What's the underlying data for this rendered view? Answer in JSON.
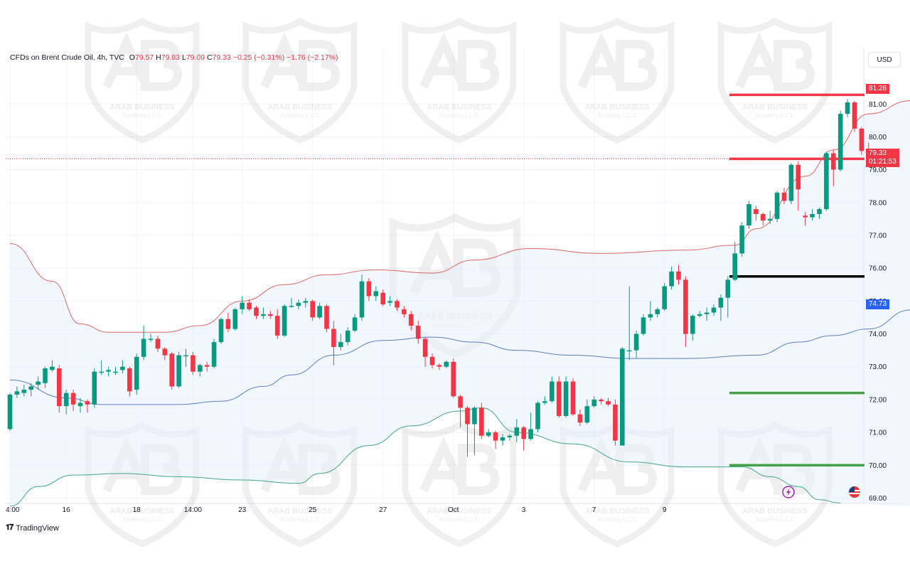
{
  "header": {
    "symbol": "CFDs on Brent Crude Oil, 4h, TVC",
    "o_label": "O",
    "o": "79.57",
    "h_label": "H",
    "h": "79.83",
    "l_label": "L",
    "l": "79.09",
    "c_label": "C",
    "c": "79.33",
    "change": "−0.25 (−0.31%)",
    "change2": "−1.76 (−2.17%)"
  },
  "currency": "USD",
  "brand": "TradingView",
  "watermark": {
    "main": "ARAB BUSINESS",
    "sub": "Academy L.L.C"
  },
  "colors": {
    "up": "#089981",
    "down": "#f23645",
    "upper_band": "#e06666",
    "middle_band": "#5b7fbf",
    "lower_band": "#3fa88a",
    "band_fill": "#e8f1fb"
  },
  "price_tags": {
    "top_line": "81.28",
    "last": "79.33",
    "countdown": "01:21:53",
    "middle": "74.73"
  },
  "chart_data": {
    "type": "candlestick",
    "y_axis": {
      "ticks": [
        "81.00",
        "80.00",
        "79.00",
        "78.00",
        "77.00",
        "76.00",
        "75.00",
        "74.00",
        "73.00",
        "72.00",
        "71.00",
        "70.00",
        "69.00"
      ],
      "ylim": [
        68.75,
        81.85
      ]
    },
    "x_axis": {
      "labels": [
        "4:00",
        "16",
        "18",
        "14:00",
        "23",
        "25",
        "27",
        "Oct",
        "3",
        "7",
        "9"
      ],
      "label_index": [
        0,
        8,
        18,
        26,
        33,
        43,
        53,
        63,
        73,
        83,
        93
      ]
    },
    "candles": [
      [
        71.1,
        72.15,
        71.05,
        72.2
      ],
      [
        72.15,
        72.25,
        72.05,
        72.4
      ],
      [
        72.2,
        72.3,
        72.1,
        72.45
      ],
      [
        72.3,
        72.4,
        72.1,
        72.5
      ],
      [
        72.45,
        72.55,
        72.3,
        72.7
      ],
      [
        72.5,
        72.95,
        72.35,
        73.0
      ],
      [
        72.9,
        73.0,
        72.85,
        73.2
      ],
      [
        72.95,
        71.8,
        71.6,
        73.05
      ],
      [
        71.8,
        72.2,
        71.55,
        72.3
      ],
      [
        72.2,
        71.85,
        71.65,
        72.3
      ],
      [
        71.8,
        71.9,
        71.6,
        72.05
      ],
      [
        71.95,
        71.85,
        71.6,
        72.0
      ],
      [
        71.85,
        72.85,
        71.75,
        72.95
      ],
      [
        72.85,
        72.85,
        72.75,
        73.2
      ],
      [
        72.85,
        72.9,
        72.7,
        73.0
      ],
      [
        72.85,
        72.85,
        72.75,
        73.0
      ],
      [
        72.9,
        73.0,
        72.8,
        73.2
      ],
      [
        72.95,
        72.25,
        72.1,
        73.0
      ],
      [
        72.3,
        73.3,
        72.15,
        73.4
      ],
      [
        73.3,
        73.85,
        73.2,
        74.25
      ],
      [
        73.85,
        73.85,
        73.75,
        74.0
      ],
      [
        73.85,
        73.55,
        73.45,
        73.95
      ],
      [
        73.55,
        73.35,
        73.2,
        73.6
      ],
      [
        73.4,
        72.4,
        72.3,
        73.45
      ],
      [
        72.4,
        73.35,
        72.35,
        73.45
      ],
      [
        73.35,
        73.35,
        73.0,
        73.55
      ],
      [
        73.35,
        72.85,
        72.75,
        73.45
      ],
      [
        72.85,
        73.05,
        72.7,
        73.1
      ],
      [
        73.05,
        73.0,
        72.85,
        73.15
      ],
      [
        73.0,
        73.75,
        72.95,
        73.85
      ],
      [
        73.75,
        74.45,
        73.7,
        74.5
      ],
      [
        74.45,
        74.15,
        74.05,
        74.65
      ],
      [
        74.15,
        74.75,
        74.1,
        74.8
      ],
      [
        74.75,
        74.95,
        74.6,
        75.15
      ],
      [
        74.95,
        74.75,
        74.7,
        75.05
      ],
      [
        74.8,
        74.55,
        74.45,
        74.85
      ],
      [
        74.55,
        74.6,
        74.45,
        74.8
      ],
      [
        74.6,
        74.55,
        74.45,
        74.7
      ],
      [
        74.55,
        73.95,
        73.85,
        74.75
      ],
      [
        73.95,
        74.85,
        73.9,
        74.9
      ],
      [
        74.85,
        74.85,
        74.8,
        75.1
      ],
      [
        74.85,
        74.95,
        74.75,
        75.05
      ],
      [
        74.95,
        75.0,
        74.8,
        75.1
      ],
      [
        75.0,
        74.5,
        74.4,
        75.05
      ],
      [
        74.5,
        74.85,
        74.45,
        74.95
      ],
      [
        74.85,
        74.15,
        74.05,
        74.9
      ],
      [
        74.15,
        73.6,
        73.05,
        74.4
      ],
      [
        73.6,
        73.75,
        73.5,
        74.0
      ],
      [
        73.75,
        74.1,
        73.65,
        74.2
      ],
      [
        74.1,
        74.5,
        74.05,
        74.6
      ],
      [
        74.5,
        75.6,
        74.4,
        75.8
      ],
      [
        75.6,
        75.15,
        75.0,
        75.7
      ],
      [
        75.15,
        75.3,
        75.0,
        75.45
      ],
      [
        75.25,
        74.9,
        74.85,
        75.35
      ],
      [
        74.95,
        75.0,
        74.85,
        75.15
      ],
      [
        75.0,
        74.8,
        74.7,
        75.05
      ],
      [
        74.75,
        74.6,
        74.5,
        74.85
      ],
      [
        74.6,
        74.25,
        74.1,
        74.7
      ],
      [
        74.25,
        73.85,
        73.7,
        74.4
      ],
      [
        73.85,
        73.3,
        73.0,
        73.9
      ],
      [
        73.3,
        73.05,
        72.95,
        73.4
      ],
      [
        73.05,
        73.0,
        72.9,
        73.1
      ],
      [
        73.0,
        73.15,
        72.95,
        73.2
      ],
      [
        73.15,
        72.1,
        72.05,
        73.25
      ],
      [
        72.1,
        71.75,
        71.15,
        72.15
      ],
      [
        71.75,
        71.25,
        70.25,
        71.8
      ],
      [
        71.25,
        71.75,
        70.3,
        71.8
      ],
      [
        71.75,
        70.9,
        70.8,
        71.9
      ],
      [
        70.9,
        71.0,
        70.85,
        71.1
      ],
      [
        71.0,
        70.75,
        70.5,
        71.05
      ],
      [
        70.75,
        70.85,
        70.6,
        70.95
      ],
      [
        70.85,
        70.9,
        70.75,
        70.95
      ],
      [
        70.9,
        71.15,
        70.7,
        71.4
      ],
      [
        71.15,
        70.8,
        70.45,
        71.2
      ],
      [
        70.8,
        71.1,
        70.75,
        71.6
      ],
      [
        71.1,
        71.9,
        71.0,
        71.95
      ],
      [
        71.9,
        71.95,
        71.85,
        72.1
      ],
      [
        71.95,
        72.55,
        71.9,
        72.7
      ],
      [
        72.55,
        71.5,
        71.45,
        72.7
      ],
      [
        71.5,
        72.55,
        71.45,
        72.7
      ],
      [
        72.55,
        71.55,
        71.5,
        72.65
      ],
      [
        71.55,
        71.3,
        71.2,
        71.7
      ],
      [
        71.3,
        71.8,
        71.25,
        72.0
      ],
      [
        71.8,
        72.0,
        71.75,
        72.1
      ],
      [
        72.0,
        71.95,
        71.85,
        72.05
      ],
      [
        71.95,
        71.85,
        71.8,
        72.05
      ],
      [
        71.85,
        70.75,
        70.6,
        72.0
      ],
      [
        70.6,
        73.55,
        70.6,
        73.6
      ],
      [
        73.5,
        73.5,
        73.2,
        75.45
      ],
      [
        73.5,
        74.0,
        73.25,
        74.1
      ],
      [
        74.0,
        74.5,
        73.95,
        74.6
      ],
      [
        74.5,
        74.6,
        74.4,
        75.0
      ],
      [
        74.6,
        74.75,
        74.5,
        74.8
      ],
      [
        74.75,
        75.45,
        74.7,
        75.55
      ],
      [
        75.45,
        75.9,
        75.35,
        76.05
      ],
      [
        75.9,
        75.65,
        75.5,
        76.1
      ],
      [
        75.65,
        74.0,
        73.6,
        75.75
      ],
      [
        74.0,
        74.55,
        73.8,
        74.6
      ],
      [
        74.55,
        74.6,
        74.5,
        74.7
      ],
      [
        74.6,
        74.65,
        74.4,
        74.8
      ],
      [
        74.65,
        74.8,
        74.55,
        74.9
      ],
      [
        74.8,
        75.1,
        74.4,
        75.2
      ],
      [
        75.1,
        75.65,
        74.5,
        75.75
      ],
      [
        75.65,
        76.45,
        75.6,
        76.8
      ],
      [
        76.45,
        77.3,
        76.35,
        77.4
      ],
      [
        77.3,
        77.95,
        77.2,
        78.05
      ],
      [
        77.8,
        77.65,
        77.45,
        77.9
      ],
      [
        77.65,
        77.45,
        77.3,
        77.7
      ],
      [
        77.45,
        77.5,
        77.35,
        77.75
      ],
      [
        77.5,
        78.3,
        77.4,
        78.35
      ],
      [
        78.3,
        78.05,
        77.95,
        78.45
      ],
      [
        78.05,
        79.15,
        77.95,
        79.2
      ],
      [
        79.15,
        78.4,
        77.75,
        79.25
      ],
      [
        77.6,
        77.55,
        77.3,
        77.7
      ],
      [
        77.55,
        77.65,
        77.45,
        77.8
      ],
      [
        77.65,
        77.8,
        77.5,
        77.85
      ],
      [
        77.8,
        79.5,
        77.75,
        79.55
      ],
      [
        79.5,
        79.0,
        78.5,
        79.6
      ],
      [
        79.0,
        80.7,
        78.95,
        80.8
      ],
      [
        80.7,
        81.05,
        80.6,
        81.15
      ],
      [
        81.05,
        80.25,
        80.15,
        81.1
      ],
      [
        80.25,
        79.57,
        79.45,
        80.3
      ],
      [
        79.57,
        79.33,
        79.09,
        79.83
      ]
    ],
    "upper_band_points": [
      [
        0,
        76.75
      ],
      [
        6,
        75.6
      ],
      [
        10,
        74.3
      ],
      [
        14,
        74.05
      ],
      [
        22,
        74.05
      ],
      [
        27,
        74.25
      ],
      [
        33,
        75.0
      ],
      [
        39,
        75.5
      ],
      [
        45,
        75.8
      ],
      [
        52,
        75.95
      ],
      [
        60,
        75.85
      ],
      [
        66,
        76.25
      ],
      [
        74,
        76.6
      ],
      [
        84,
        76.45
      ],
      [
        96,
        76.55
      ],
      [
        103,
        76.7
      ],
      [
        106,
        77.2
      ],
      [
        113,
        78.8
      ],
      [
        117,
        79.6
      ],
      [
        122,
        80.7
      ],
      [
        128,
        81.1
      ]
    ],
    "middle_band_points": [
      [
        0,
        72.6
      ],
      [
        8,
        72.05
      ],
      [
        13,
        71.85
      ],
      [
        24,
        71.85
      ],
      [
        30,
        71.95
      ],
      [
        36,
        72.4
      ],
      [
        40,
        72.75
      ],
      [
        46,
        73.35
      ],
      [
        53,
        73.8
      ],
      [
        60,
        73.9
      ],
      [
        66,
        73.75
      ],
      [
        72,
        73.5
      ],
      [
        80,
        73.35
      ],
      [
        88,
        73.25
      ],
      [
        96,
        73.25
      ],
      [
        106,
        73.35
      ],
      [
        112,
        73.75
      ],
      [
        117,
        73.95
      ],
      [
        122,
        74.15
      ],
      [
        128,
        74.73
      ]
    ],
    "lower_band_points": [
      [
        0,
        68.75
      ],
      [
        4,
        69.35
      ],
      [
        9,
        69.7
      ],
      [
        16,
        69.75
      ],
      [
        24,
        69.65
      ],
      [
        33,
        69.55
      ],
      [
        41,
        69.45
      ],
      [
        44,
        69.75
      ],
      [
        51,
        70.6
      ],
      [
        57,
        71.2
      ],
      [
        64,
        71.65
      ],
      [
        67,
        71.75
      ],
      [
        72,
        71.0
      ],
      [
        80,
        70.65
      ],
      [
        88,
        70.1
      ],
      [
        96,
        69.95
      ],
      [
        104,
        69.95
      ],
      [
        108,
        69.65
      ],
      [
        112,
        69.35
      ],
      [
        115,
        68.95
      ],
      [
        118,
        68.85
      ]
    ],
    "horizontal_levels": [
      {
        "value": 81.28,
        "color": "#f23645"
      },
      {
        "value": 79.33,
        "color": "#f23645"
      },
      {
        "value": 75.75,
        "color": "#000000"
      },
      {
        "value": 72.2,
        "color": "#43a047"
      },
      {
        "value": 70.0,
        "color": "#43a047"
      }
    ]
  }
}
